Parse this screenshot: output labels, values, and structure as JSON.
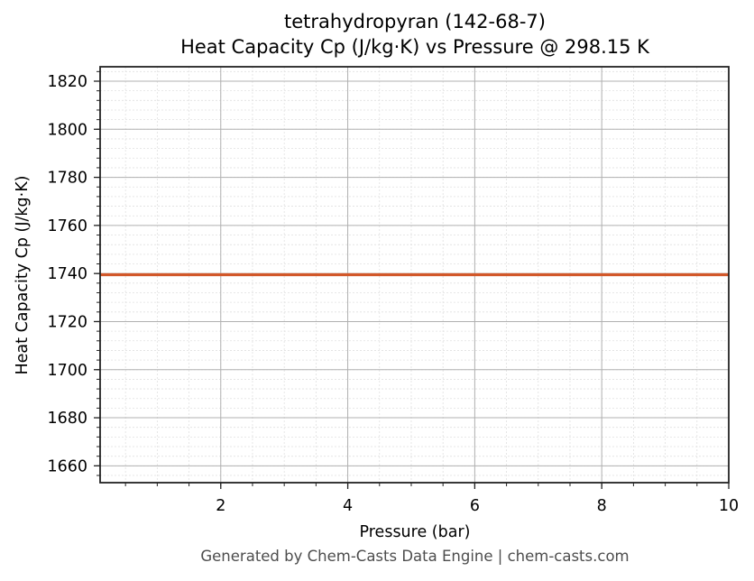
{
  "header": {
    "title_line1": "tetrahydropyran (142-68-7)",
    "title_line2": "Heat Capacity Cp (J/kg·K) vs Pressure @ 298.15 K"
  },
  "footer": {
    "text": "Generated by Chem-Casts Data Engine | chem-casts.com"
  },
  "chart_data": {
    "type": "line",
    "title": "tetrahydropyran (142-68-7)\nHeat Capacity Cp (J/kg·K) vs Pressure @ 298.15 K",
    "xlabel": "Pressure (bar)",
    "ylabel": "Heat Capacity Cp (J/kg·K)",
    "xlim": [
      0.1,
      10
    ],
    "ylim": [
      1653,
      1826
    ],
    "xticks": [
      2,
      4,
      6,
      8,
      10
    ],
    "yticks": [
      1660,
      1680,
      1700,
      1720,
      1740,
      1760,
      1780,
      1800,
      1820
    ],
    "grid": true,
    "minor_grid": true,
    "legend": null,
    "series": [
      {
        "name": "Cp",
        "color": "#d2582a",
        "x": [
          0.1,
          1,
          2,
          3,
          4,
          5,
          6,
          7,
          8,
          9,
          10
        ],
        "values": [
          1739.5,
          1739.5,
          1739.5,
          1739.5,
          1739.5,
          1739.5,
          1739.5,
          1739.5,
          1739.5,
          1739.5,
          1739.5
        ]
      }
    ]
  }
}
